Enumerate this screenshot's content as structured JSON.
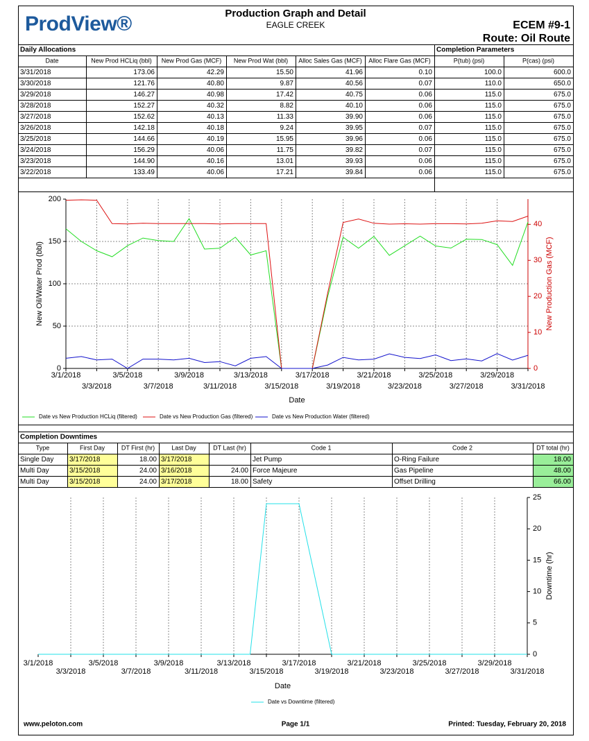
{
  "header": {
    "logo": "ProdView®",
    "title": "Production Graph and Detail",
    "subtitle": "EAGLE CREEK",
    "well": "ECEM #9-1",
    "route": "Route: Oil Route"
  },
  "daily_allocations": {
    "title": "Daily Allocations",
    "parameters_title": "Completion Parameters",
    "columns": [
      "Date",
      "New Prod HCLiq (bbl)",
      "New Prod Gas (MCF)",
      "New Prod Wat (bbl)",
      "Alloc Sales Gas (MCF)",
      "Alloc Flare Gas (MCF)",
      "P(tub) (psi)",
      "P(cas) (psi)"
    ],
    "rows": [
      [
        "3/31/2018",
        "173.06",
        "42.29",
        "15.50",
        "41.96",
        "0.10",
        "100.0",
        "600.0"
      ],
      [
        "3/30/2018",
        "121.76",
        "40.80",
        "9.87",
        "40.56",
        "0.07",
        "110.0",
        "650.0"
      ],
      [
        "3/29/2018",
        "146.27",
        "40.98",
        "17.42",
        "40.75",
        "0.06",
        "115.0",
        "675.0"
      ],
      [
        "3/28/2018",
        "152.27",
        "40.32",
        "8.82",
        "40.10",
        "0.06",
        "115.0",
        "675.0"
      ],
      [
        "3/27/2018",
        "152.62",
        "40.13",
        "11.33",
        "39.90",
        "0.06",
        "115.0",
        "675.0"
      ],
      [
        "3/26/2018",
        "142.18",
        "40.18",
        "9.24",
        "39.95",
        "0.07",
        "115.0",
        "675.0"
      ],
      [
        "3/25/2018",
        "144.66",
        "40.19",
        "15.95",
        "39.96",
        "0.06",
        "115.0",
        "675.0"
      ],
      [
        "3/24/2018",
        "156.29",
        "40.06",
        "11.75",
        "39.82",
        "0.07",
        "115.0",
        "675.0"
      ],
      [
        "3/23/2018",
        "144.90",
        "40.16",
        "13.01",
        "39.93",
        "0.06",
        "115.0",
        "675.0"
      ],
      [
        "3/22/2018",
        "133.49",
        "40.06",
        "17.21",
        "39.84",
        "0.06",
        "115.0",
        "675.0"
      ]
    ]
  },
  "chart_data": [
    {
      "type": "line",
      "categories": [
        "3/1/2018",
        null,
        "3/3/2018",
        null,
        "3/5/2018",
        null,
        "3/7/2018",
        null,
        "3/9/2018",
        null,
        "3/11/2018",
        null,
        "3/13/2018",
        null,
        "3/15/2018",
        null,
        "3/17/2018",
        null,
        "3/19/2018",
        null,
        "3/21/2018",
        null,
        "3/23/2018",
        null,
        "3/25/2018",
        null,
        "3/27/2018",
        null,
        "3/29/2018",
        null,
        "3/31/2018"
      ],
      "x_label": "Date",
      "y_label": "New Oil/Water Prod (bbl)",
      "y2_label": "New Production Gas (MCF)",
      "y2_color": "#cc0000",
      "ylim": [
        0,
        200
      ],
      "yticks": [
        0,
        50,
        100,
        150,
        200
      ],
      "y2lim": [
        0,
        47
      ],
      "y2ticks": [
        0,
        10,
        20,
        30,
        40
      ],
      "y_axis_side": "left",
      "grid": "xy",
      "legend": "bottom",
      "series": [
        {
          "name": "Date vs New Production HCLiq (filtered)",
          "color": "#22dd22",
          "values": [
            165,
            150,
            139,
            132,
            145,
            154,
            151,
            150,
            177,
            141,
            142,
            155,
            134,
            139,
            0,
            0,
            0,
            85,
            155,
            142,
            156,
            133.49,
            144.9,
            156.29,
            144.66,
            142.18,
            152.62,
            152.27,
            146.27,
            121.76,
            173.06
          ]
        },
        {
          "name": "Date vs New Production Gas (filtered)",
          "color": "#dd1111",
          "axis": "y2",
          "values": [
            46.7,
            46.8,
            46.7,
            40.2,
            40.1,
            40.3,
            40.2,
            40.2,
            40.2,
            40.2,
            40.1,
            40.2,
            40.2,
            40.2,
            0,
            0,
            0,
            21,
            40.5,
            41.5,
            40.3,
            40.06,
            40.16,
            40.06,
            40.19,
            40.18,
            40.13,
            40.32,
            40.98,
            40.8,
            42.29
          ]
        },
        {
          "name": "Date vs New Production Water (filtered)",
          "color": "#1111cc",
          "values": [
            12,
            14,
            10,
            11,
            0,
            11,
            11,
            10,
            12,
            7,
            8,
            3,
            12,
            14,
            0,
            0,
            0,
            4,
            13,
            10,
            11,
            17.21,
            13.01,
            11.75,
            15.95,
            9.24,
            11.33,
            8.82,
            17.42,
            9.87,
            15.5
          ]
        }
      ]
    },
    {
      "type": "line",
      "categories": [
        "3/1/2018",
        null,
        "3/3/2018",
        null,
        "3/5/2018",
        null,
        "3/7/2018",
        null,
        "3/9/2018",
        null,
        "3/11/2018",
        null,
        "3/13/2018",
        null,
        "3/15/2018",
        null,
        "3/17/2018",
        null,
        "3/19/2018",
        null,
        "3/21/2018",
        null,
        "3/23/2018",
        null,
        "3/25/2018",
        null,
        "3/27/2018",
        null,
        "3/29/2018",
        null,
        "3/31/2018"
      ],
      "x_label": "Date",
      "y_label": "Downtime (hr)",
      "ylim": [
        0,
        25
      ],
      "yticks": [
        0,
        5,
        10,
        15,
        20,
        25
      ],
      "y_axis_side": "right",
      "grid": "x",
      "legend": "bottom",
      "series": [
        {
          "name": "Date vs Downtime (filtered)",
          "color": "#22e0e8",
          "values": [
            0,
            0,
            0,
            0,
            0,
            0,
            0,
            0,
            0,
            0,
            0,
            0,
            0,
            0,
            24,
            24,
            24,
            12,
            0,
            0,
            0,
            0,
            0,
            0,
            0,
            0,
            0,
            0,
            0,
            0,
            0
          ]
        }
      ]
    }
  ],
  "downtimes": {
    "title": "Completion Downtimes",
    "columns": [
      "Type",
      "First Day",
      "DT First (hr)",
      "Last Day",
      "DT Last (hr)",
      "Code 1",
      "Code 2",
      "DT total (hr)"
    ],
    "rows": [
      [
        "Single Day",
        "3/17/2018",
        "18.00",
        "3/17/2018",
        null,
        "Jet Pump",
        "O-Ring Failure",
        "18.00"
      ],
      [
        "Multi Day",
        "3/15/2018",
        "24.00",
        "3/16/2018",
        "24.00",
        "Force Majeure",
        "Gas Pipeline",
        "48.00"
      ],
      [
        "Multi Day",
        "3/15/2018",
        "24.00",
        "3/17/2018",
        "18.00",
        "Safety",
        "Offset Drilling",
        "66.00"
      ]
    ]
  },
  "footer": {
    "website": "www.peloton.com",
    "page": "Page 1/1",
    "printed": "Printed:  Tuesday, February 20, 2018"
  }
}
